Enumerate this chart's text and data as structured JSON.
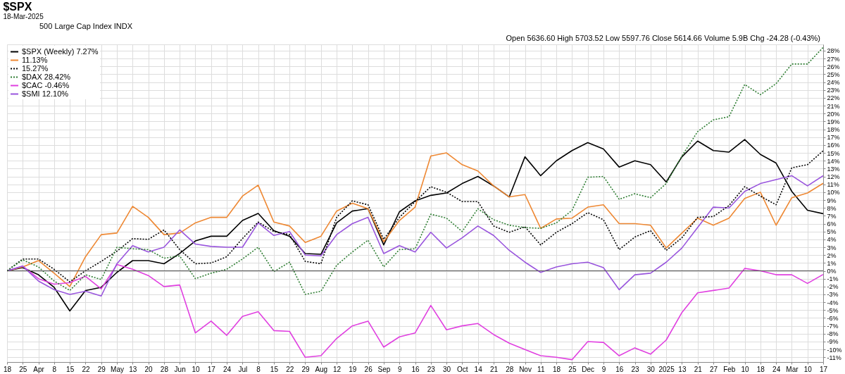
{
  "chart_data": {
    "type": "line",
    "title": "$SPX",
    "subtitle": "18-Mar-2025",
    "annotations": [
      "500 Large Cap Index INDX",
      "Open 5636.60 High 5703.52 Low 5597.76 Close 5614.66 Volume 5.9B Chg -24.28 (-0.43%)"
    ],
    "categories": [
      "18",
      "25",
      "Apr",
      "8",
      "15",
      "22",
      "29",
      "May",
      "13",
      "20",
      "28",
      "Jun",
      "10",
      "17",
      "24",
      "Jul",
      "8",
      "15",
      "22",
      "29",
      "Aug",
      "12",
      "19",
      "26",
      "Sep",
      "9",
      "16",
      "23",
      "30",
      "Oct",
      "14",
      "21",
      "28",
      "Nov",
      "11",
      "18",
      "25",
      "Dec",
      "9",
      "16",
      "23",
      "30",
      "2025",
      "13",
      "21",
      "27",
      "Feb",
      "10",
      "18",
      "24",
      "Mar",
      "10",
      "17"
    ],
    "series": [
      {
        "name": "$SPX (Weekly) 7.27%",
        "color": "#000000",
        "line_style": "solid",
        "values": [
          0,
          0.4,
          -0.5,
          -2.1,
          -5.1,
          -2.5,
          -2.1,
          -0.2,
          1.3,
          1.3,
          0.9,
          2.2,
          3.8,
          4.4,
          4.4,
          6.4,
          7.3,
          5.1,
          4.4,
          2.2,
          2.1,
          6.1,
          7.6,
          7.9,
          3.3,
          7.5,
          8.9,
          9.6,
          9.9,
          11.1,
          12.0,
          10.8,
          9.4,
          14.5,
          12.1,
          14.0,
          15.3,
          16.3,
          15.5,
          13.2,
          14.0,
          13.5,
          11.3,
          14.5,
          16.5,
          15.3,
          15.1,
          16.7,
          14.8,
          13.7,
          10.1,
          7.7,
          7.27
        ]
      },
      {
        "name": "11.13%",
        "color": "#ee8833",
        "line_style": "solid",
        "values": [
          0,
          0.5,
          1.3,
          -0.3,
          -2.0,
          1.8,
          4.6,
          4.8,
          8.2,
          6.8,
          4.6,
          4.8,
          6.1,
          6.8,
          6.8,
          9.5,
          10.9,
          6.2,
          5.7,
          3.6,
          4.4,
          7.6,
          8.6,
          7.9,
          3.7,
          6.4,
          8.1,
          14.6,
          15.0,
          13.5,
          12.7,
          10.8,
          9.4,
          9.7,
          5.4,
          6.6,
          6.7,
          8.1,
          8.4,
          6.0,
          6.0,
          5.8,
          2.9,
          4.8,
          6.7,
          5.8,
          6.7,
          9.2,
          10.0,
          5.8,
          9.3,
          9.9,
          11.13
        ]
      },
      {
        "name": "15.27%",
        "color": "#000000",
        "line_style": "dotted",
        "values": [
          0,
          1.5,
          1.5,
          0.2,
          -1.4,
          0,
          1.2,
          2.5,
          4.1,
          4.0,
          5.2,
          2.7,
          0.9,
          1.0,
          1.8,
          4.1,
          6.2,
          5.0,
          4.6,
          1.2,
          0.9,
          6.8,
          8.9,
          8.4,
          4.0,
          6.8,
          8.8,
          10.7,
          10.0,
          8.8,
          8.8,
          5.7,
          4.9,
          5.6,
          3.3,
          4.9,
          6.0,
          7.4,
          6.5,
          2.7,
          4.3,
          5.1,
          2.6,
          4.2,
          6.8,
          6.9,
          8.3,
          10.7,
          9.5,
          8.4,
          13.1,
          13.5,
          15.27
        ]
      },
      {
        "name": "$DAX 28.42%",
        "color": "#2e7d32",
        "line_style": "dotted",
        "values": [
          0,
          1.4,
          0.5,
          -1.3,
          -2.5,
          -0.5,
          -1.1,
          3.0,
          2.8,
          2.7,
          1.6,
          1.9,
          -1.0,
          -0.3,
          0.2,
          1.5,
          3.0,
          -0.1,
          1.1,
          -3.0,
          -2.6,
          0.7,
          2.4,
          3.9,
          0.5,
          2.7,
          2.8,
          7.2,
          6.7,
          5.0,
          7.9,
          6.5,
          5.8,
          5.5,
          5.4,
          6.1,
          7.7,
          11.9,
          12.0,
          9.1,
          9.8,
          9.3,
          11.1,
          14.6,
          17.7,
          19.2,
          19.6,
          23.7,
          22.4,
          23.8,
          26.3,
          26.3,
          28.42
        ]
      },
      {
        "name": "$CAC -0.46%",
        "color": "#e040e0",
        "line_style": "solid",
        "values": [
          0,
          0.6,
          -1.0,
          -1.7,
          -1.5,
          -0.7,
          -2.3,
          0.8,
          0.2,
          -0.6,
          -2.0,
          -1.8,
          -7.9,
          -6.4,
          -8.2,
          -5.8,
          -5.2,
          -7.6,
          -7.7,
          -11.0,
          -10.8,
          -8.6,
          -7.0,
          -6.4,
          -9.7,
          -8.4,
          -7.9,
          -4.4,
          -7.5,
          -7.0,
          -6.7,
          -8.1,
          -9.2,
          -10.0,
          -10.8,
          -11.0,
          -11.3,
          -9.0,
          -9.1,
          -10.8,
          -9.8,
          -10.6,
          -8.8,
          -5.3,
          -2.8,
          -2.5,
          -2.2,
          0.3,
          0.0,
          -0.5,
          -0.5,
          -1.6,
          -0.46
        ]
      },
      {
        "name": "$SMI 12.10%",
        "color": "#9955dd",
        "line_style": "solid",
        "values": [
          0,
          0.6,
          -1.3,
          -2.4,
          -3.0,
          -2.6,
          -3.2,
          0.9,
          3.2,
          2.4,
          3.0,
          5.2,
          3.4,
          3.1,
          3.0,
          3.0,
          6.1,
          4.5,
          5.0,
          2.0,
          1.9,
          4.6,
          6.0,
          6.8,
          2.2,
          3.2,
          2.4,
          4.9,
          2.9,
          4.2,
          5.7,
          4.5,
          2.6,
          1.1,
          -0.2,
          0.5,
          0.9,
          1.1,
          0.4,
          -2.4,
          -0.5,
          -0.3,
          1.1,
          2.9,
          5.5,
          8.1,
          8.0,
          10.1,
          11.1,
          11.6,
          12.1,
          10.8,
          12.1
        ]
      }
    ],
    "ylim": [
      -11.6,
      28.8
    ],
    "yticks": [
      {
        "value": -11,
        "label": "-11%"
      },
      {
        "value": -10,
        "label": "-10%"
      },
      {
        "value": -9,
        "label": "-9%"
      },
      {
        "value": -8,
        "label": "-8%"
      },
      {
        "value": -7,
        "label": "-7%"
      },
      {
        "value": -6,
        "label": "-6%"
      },
      {
        "value": -5,
        "label": "-5%"
      },
      {
        "value": -4,
        "label": "-4%"
      },
      {
        "value": -3,
        "label": "-3%"
      },
      {
        "value": -2,
        "label": "-2%"
      },
      {
        "value": -1,
        "label": "-1%"
      },
      {
        "value": 0,
        "label": "0%"
      },
      {
        "value": 1,
        "label": "1%"
      },
      {
        "value": 2,
        "label": "2%"
      },
      {
        "value": 3,
        "label": "3%"
      },
      {
        "value": 4,
        "label": "4%"
      },
      {
        "value": 5,
        "label": "5%"
      },
      {
        "value": 6,
        "label": "6%"
      },
      {
        "value": 7,
        "label": "7%"
      },
      {
        "value": 8,
        "label": "8%"
      },
      {
        "value": 9,
        "label": "9%"
      },
      {
        "value": 10,
        "label": "10%"
      },
      {
        "value": 11,
        "label": "11%"
      },
      {
        "value": 12,
        "label": "12%"
      },
      {
        "value": 13,
        "label": "13%"
      },
      {
        "value": 14,
        "label": "14%"
      },
      {
        "value": 15,
        "label": "15%"
      },
      {
        "value": 16,
        "label": "16%"
      },
      {
        "value": 17,
        "label": "17%"
      },
      {
        "value": 18,
        "label": "18%"
      },
      {
        "value": 19,
        "label": "19%"
      },
      {
        "value": 20,
        "label": "20%"
      },
      {
        "value": 21,
        "label": "21%"
      },
      {
        "value": 22,
        "label": "22%"
      },
      {
        "value": 23,
        "label": "23%"
      },
      {
        "value": 24,
        "label": "24%"
      },
      {
        "value": 25,
        "label": "25%"
      },
      {
        "value": 26,
        "label": "26%"
      },
      {
        "value": 27,
        "label": "27%"
      },
      {
        "value": 28,
        "label": "28%"
      }
    ],
    "ref_lines": [
      {
        "axis": "y",
        "value": 0,
        "color": "#555555"
      }
    ],
    "grid": true,
    "legend": "top left"
  }
}
